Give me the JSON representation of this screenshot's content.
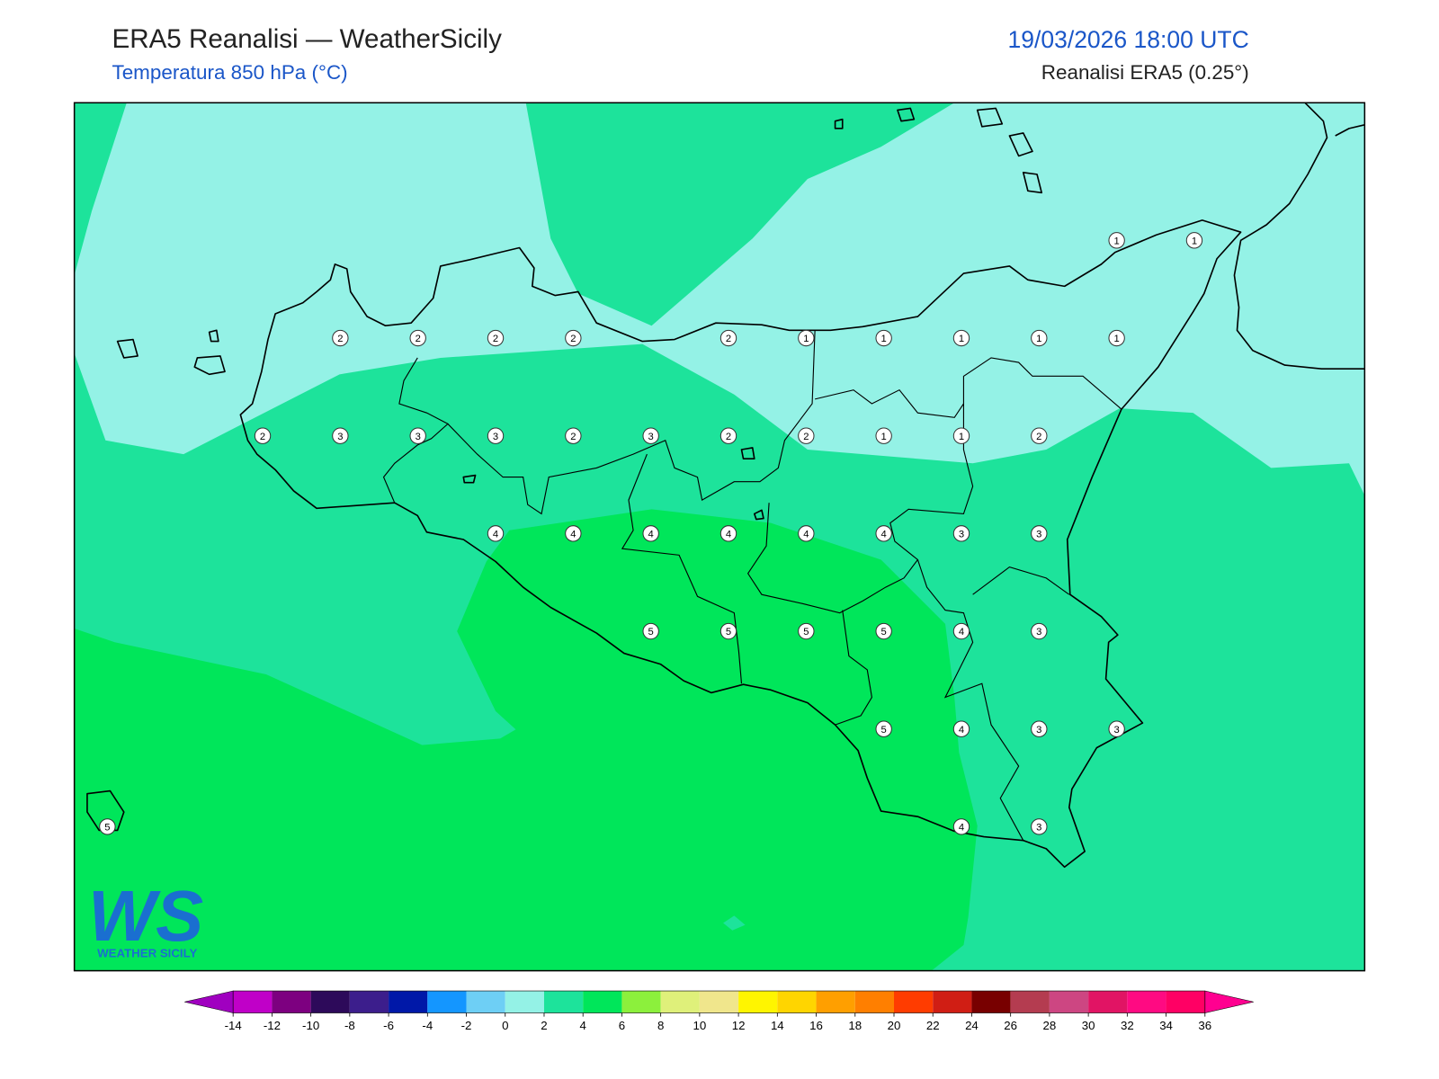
{
  "header": {
    "title": "ERA5 Reanalisi — WeatherSicily",
    "subtitle": "Temperatura 850 hPa (°C)",
    "datetime": "19/03/2026 18:00 UTC",
    "source": "Reanalisi ERA5 (0.25°)"
  },
  "map": {
    "grid": [
      [
        null,
        null,
        null,
        null,
        null,
        null,
        null,
        null,
        null,
        null,
        null,
        null,
        null,
        1,
        1
      ],
      [
        null,
        null,
        null,
        2,
        2,
        2,
        2,
        null,
        2,
        1,
        1,
        1,
        1,
        1,
        null
      ],
      [
        null,
        null,
        2,
        3,
        3,
        3,
        2,
        3,
        2,
        2,
        1,
        1,
        2,
        null,
        null
      ],
      [
        null,
        null,
        null,
        null,
        null,
        4,
        4,
        4,
        4,
        4,
        4,
        3,
        3,
        null,
        null
      ],
      [
        null,
        null,
        null,
        null,
        null,
        null,
        null,
        5,
        5,
        5,
        5,
        4,
        3,
        null,
        null
      ],
      [
        null,
        null,
        null,
        null,
        null,
        null,
        null,
        null,
        null,
        null,
        5,
        4,
        3,
        3,
        null
      ],
      [
        5,
        null,
        null,
        null,
        null,
        null,
        null,
        null,
        null,
        null,
        null,
        4,
        3,
        null,
        null
      ]
    ]
  },
  "colorbar": {
    "ticks": [
      -14,
      -12,
      -10,
      -8,
      -6,
      -4,
      -2,
      0,
      2,
      4,
      6,
      8,
      10,
      12,
      14,
      16,
      18,
      20,
      22,
      24,
      26,
      28,
      30,
      32,
      34,
      36
    ],
    "colors": [
      "#a000c0",
      "#c000c8",
      "#7d0080",
      "#2d0a5a",
      "#3c1e8c",
      "#0018a8",
      "#1496ff",
      "#6ecff5",
      "#94f2e6",
      "#1de39b",
      "#00e65a",
      "#8cf03c",
      "#dff07a",
      "#f0e68c",
      "#fff500",
      "#ffd500",
      "#ff9f00",
      "#ff7f00",
      "#ff3c00",
      "#d01e14",
      "#780000",
      "#b43c50",
      "#cd4682",
      "#e11464",
      "#ff0a82",
      "#ff0064",
      "#ff0090"
    ]
  },
  "logo": {
    "mark": "WS",
    "text": "WEATHER SICILY"
  }
}
